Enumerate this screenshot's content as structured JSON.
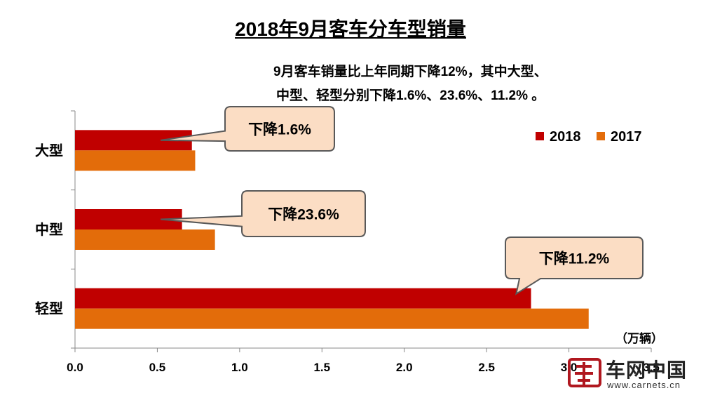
{
  "title": "2018年9月客车分车型销量",
  "note": {
    "line1": "9月客车销量比上年同期下降12%，其中大型、",
    "line2": "中型、轻型分别下降1.6%、23.6%、11.2% 。"
  },
  "unit": "（万辆）",
  "logo": {
    "brand": "车网中国",
    "url": "www.carnets.cn"
  },
  "colors": {
    "s2018": "#C00000",
    "s2017": "#E36C0A",
    "callout_fill": "#FBDDC4",
    "callout_border": "#595959"
  },
  "chart_data": {
    "type": "bar",
    "orientation": "horizontal",
    "title": "2018年9月客车分车型销量",
    "categories": [
      "大型",
      "中型",
      "轻型"
    ],
    "series": [
      {
        "name": "2018",
        "values": [
          0.71,
          0.65,
          2.77
        ]
      },
      {
        "name": "2017",
        "values": [
          0.73,
          0.85,
          3.12
        ]
      }
    ],
    "xlim": [
      0,
      3.5
    ],
    "xticks": [
      "0.0",
      "0.5",
      "1.0",
      "1.5",
      "2.0",
      "2.5",
      "3.0",
      "3.5"
    ],
    "xlabel": "（万辆）",
    "legend": "top-right",
    "annotations": [
      "下降1.6%",
      "下降23.6%",
      "下降11.2%"
    ],
    "grid": false
  }
}
